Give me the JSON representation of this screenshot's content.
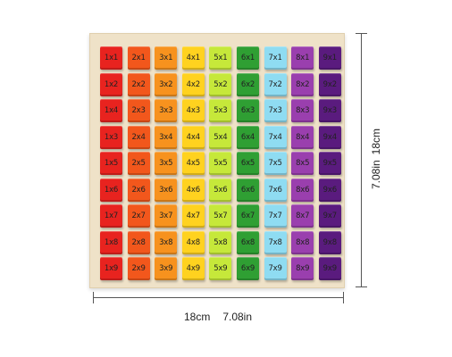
{
  "board": {
    "columns": [
      {
        "color": "#e8231f",
        "labels": [
          "1x1",
          "1x2",
          "1x4",
          "1x3",
          "1x5",
          "1x6",
          "1x7",
          "1x8",
          "1x9"
        ]
      },
      {
        "color": "#f2571c",
        "labels": [
          "2x1",
          "2x2",
          "2x3",
          "2x4",
          "2x5",
          "2x6",
          "2x7",
          "2x8",
          "2x9"
        ]
      },
      {
        "color": "#f7921e",
        "labels": [
          "3x1",
          "3x2",
          "3x3",
          "3x4",
          "3x5",
          "3x6",
          "3x7",
          "3x8",
          "3x9"
        ]
      },
      {
        "color": "#ffd21f",
        "labels": [
          "4x1",
          "4x2",
          "4x3",
          "4x4",
          "4x5",
          "4x6",
          "4x7",
          "4x8",
          "4x9"
        ]
      },
      {
        "color": "#c6e83a",
        "labels": [
          "5x1",
          "5x2",
          "5x3",
          "5x4",
          "5x5",
          "5x6",
          "5x7",
          "5x8",
          "5x9"
        ]
      },
      {
        "color": "#2f9f33",
        "labels": [
          "6x1",
          "6x2",
          "6x3",
          "6x4",
          "6x5",
          "6x6",
          "6x7",
          "6x8",
          "6x9"
        ]
      },
      {
        "color": "#8fdcf2",
        "labels": [
          "7x1",
          "7x2",
          "7x3",
          "7x4",
          "7x5",
          "7x6",
          "7x7",
          "7x8",
          "7x9"
        ]
      },
      {
        "color": "#9a3fae",
        "labels": [
          "8x1",
          "8x2",
          "8x3",
          "8x4",
          "8x5",
          "8x6",
          "8x7",
          "8x8",
          "8x9"
        ]
      },
      {
        "color": "#5a1b7e",
        "labels": [
          "9x1",
          "9x2",
          "9x3",
          "9x4",
          "9x5",
          "9x6",
          "9x7",
          "9x8",
          "9x9"
        ]
      }
    ]
  },
  "dimensions": {
    "width_cm": "18cm",
    "width_in": "7.08in",
    "height_in": "7.08in",
    "height_cm": "18cm"
  }
}
